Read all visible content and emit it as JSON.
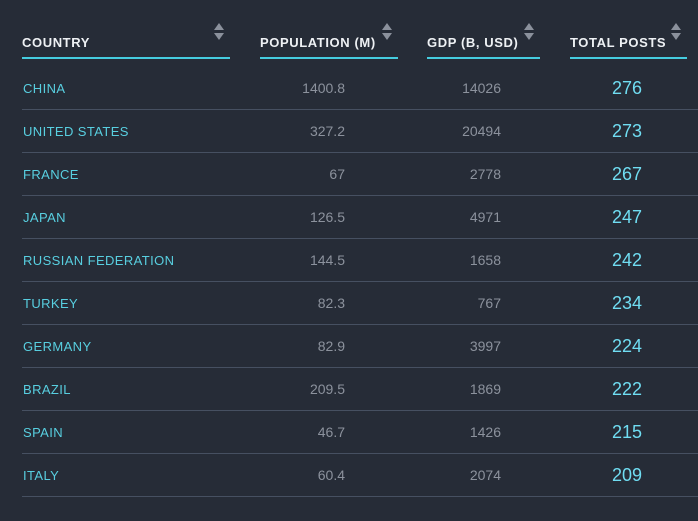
{
  "table": {
    "columns": [
      {
        "label": "COUNTRY"
      },
      {
        "label": "POPULATION (M)"
      },
      {
        "label": "GDP (B, USD)"
      },
      {
        "label": "TOTAL POSTS"
      }
    ],
    "rows": [
      {
        "country": "CHINA",
        "population": "1400.8",
        "gdp": "14026",
        "total_posts": "276"
      },
      {
        "country": "UNITED STATES",
        "population": "327.2",
        "gdp": "20494",
        "total_posts": "273"
      },
      {
        "country": "FRANCE",
        "population": "67",
        "gdp": "2778",
        "total_posts": "267"
      },
      {
        "country": "JAPAN",
        "population": "126.5",
        "gdp": "4971",
        "total_posts": "247"
      },
      {
        "country": "RUSSIAN FEDERATION",
        "population": "144.5",
        "gdp": "1658",
        "total_posts": "242"
      },
      {
        "country": "TURKEY",
        "population": "82.3",
        "gdp": "767",
        "total_posts": "234"
      },
      {
        "country": "GERMANY",
        "population": "82.9",
        "gdp": "3997",
        "total_posts": "224"
      },
      {
        "country": "BRAZIL",
        "population": "209.5",
        "gdp": "1869",
        "total_posts": "222"
      },
      {
        "country": "SPAIN",
        "population": "46.7",
        "gdp": "1426",
        "total_posts": "215"
      },
      {
        "country": "ITALY",
        "population": "60.4",
        "gdp": "2074",
        "total_posts": "209"
      }
    ]
  },
  "icons": {
    "sort": "sort-arrows-up-down"
  },
  "colors": {
    "background": "#262c37",
    "header_underline": "#45ccdf",
    "header_text": "#eef1f4",
    "country_text": "#58cfe0",
    "number_text": "#8c929d",
    "total_posts_text": "#70ddf2",
    "row_divider": "#465061",
    "sort_icon": "#8b919c"
  }
}
